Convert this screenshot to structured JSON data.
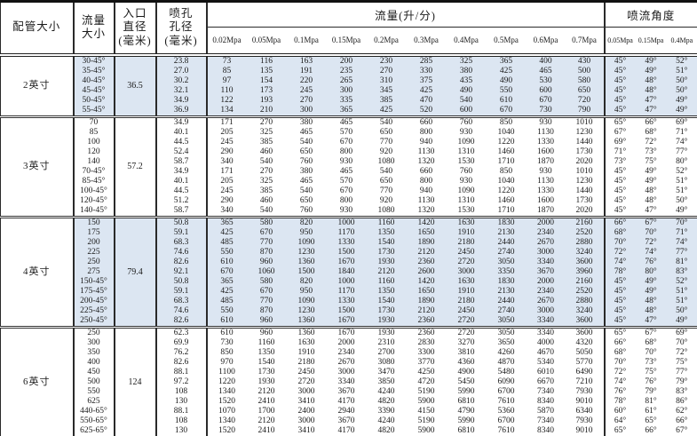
{
  "header": {
    "pipe_size": "配管大小",
    "flow_size": "流量\n大小",
    "inlet_diameter": "入口\n直径\n(毫米)",
    "orifice_diameter": "喷孔\n孔径\n(毫米)",
    "flow_rate_title": "流量(升/分)",
    "spray_angle_title": "喷流角度",
    "flow_pressures": [
      "0.02Mpa",
      "0.05Mpa",
      "0.1Mpa",
      "0.15Mpa",
      "0.2Mpa",
      "0.3Mpa",
      "0.4Mpa",
      "0.5Mpa",
      "0.6Mpa",
      "0.7Mpa"
    ],
    "angle_pressures": [
      "0.05Mpa",
      "0.15Mpa",
      "0.4Mpa"
    ]
  },
  "colors": {
    "shaded_row_bg": "#dce6f2",
    "border": "#2a2a2a"
  },
  "groups": [
    {
      "pipe_size": "2英寸",
      "inlet_diameter": "36.5",
      "shaded": true,
      "rows": [
        {
          "flow_size": "30-45°",
          "orifice": "23.8",
          "flows": [
            73,
            116,
            163,
            200,
            230,
            285,
            325,
            365,
            400,
            430
          ],
          "angles": [
            "45°",
            "49°",
            "52°"
          ]
        },
        {
          "flow_size": "35-45°",
          "orifice": "27.0",
          "flows": [
            85,
            135,
            191,
            235,
            270,
            330,
            380,
            425,
            465,
            500
          ],
          "angles": [
            "45°",
            "49°",
            "51°"
          ]
        },
        {
          "flow_size": "40-45°",
          "orifice": "30.2",
          "flows": [
            97,
            154,
            220,
            265,
            310,
            375,
            435,
            490,
            530,
            580
          ],
          "angles": [
            "45°",
            "48°",
            "50°"
          ]
        },
        {
          "flow_size": "45-45°",
          "orifice": "32.1",
          "flows": [
            110,
            173,
            245,
            300,
            345,
            425,
            490,
            550,
            600,
            650
          ],
          "angles": [
            "45°",
            "48°",
            "50°"
          ]
        },
        {
          "flow_size": "50-45°",
          "orifice": "34.9",
          "flows": [
            122,
            193,
            270,
            335,
            385,
            470,
            540,
            610,
            670,
            720
          ],
          "angles": [
            "45°",
            "47°",
            "49°"
          ]
        },
        {
          "flow_size": "55-45°",
          "orifice": "36.9",
          "flows": [
            134,
            210,
            300,
            365,
            425,
            520,
            600,
            670,
            730,
            790
          ],
          "angles": [
            "45°",
            "47°",
            "49°"
          ]
        }
      ]
    },
    {
      "pipe_size": "3英寸",
      "inlet_diameter": "57.2",
      "shaded": false,
      "rows": [
        {
          "flow_size": "70",
          "orifice": "34.9",
          "flows": [
            171,
            270,
            380,
            465,
            540,
            660,
            760,
            850,
            930,
            1010
          ],
          "angles": [
            "65°",
            "66°",
            "69°"
          ]
        },
        {
          "flow_size": "85",
          "orifice": "40.1",
          "flows": [
            205,
            325,
            465,
            570,
            650,
            800,
            930,
            1040,
            1130,
            1230
          ],
          "angles": [
            "67°",
            "68°",
            "71°"
          ]
        },
        {
          "flow_size": "100",
          "orifice": "44.5",
          "flows": [
            245,
            385,
            540,
            670,
            770,
            940,
            1090,
            1220,
            1330,
            1440
          ],
          "angles": [
            "69°",
            "72°",
            "74°"
          ]
        },
        {
          "flow_size": "120",
          "orifice": "52.4",
          "flows": [
            290,
            460,
            650,
            800,
            920,
            1130,
            1310,
            1460,
            1600,
            1730
          ],
          "angles": [
            "71°",
            "73°",
            "77°"
          ]
        },
        {
          "flow_size": "140",
          "orifice": "58.7",
          "flows": [
            340,
            540,
            760,
            930,
            1080,
            1320,
            1530,
            1710,
            1870,
            2020
          ],
          "angles": [
            "73°",
            "75°",
            "80°"
          ]
        },
        {
          "flow_size": "70-45°",
          "orifice": "34.9",
          "flows": [
            171,
            270,
            380,
            465,
            540,
            660,
            760,
            850,
            930,
            1010
          ],
          "angles": [
            "45°",
            "49°",
            "52°"
          ]
        },
        {
          "flow_size": "85-45°",
          "orifice": "40.1",
          "flows": [
            205,
            325,
            465,
            570,
            650,
            800,
            930,
            1040,
            1130,
            1230
          ],
          "angles": [
            "45°",
            "49°",
            "51°"
          ]
        },
        {
          "flow_size": "100-45°",
          "orifice": "44.5",
          "flows": [
            245,
            385,
            540,
            670,
            770,
            940,
            1090,
            1220,
            1330,
            1440
          ],
          "angles": [
            "45°",
            "48°",
            "51°"
          ]
        },
        {
          "flow_size": "120-45°",
          "orifice": "51.2",
          "flows": [
            290,
            460,
            650,
            800,
            920,
            1130,
            1310,
            1460,
            1600,
            1730
          ],
          "angles": [
            "45°",
            "48°",
            "50°"
          ]
        },
        {
          "flow_size": "140-45°",
          "orifice": "58.7",
          "flows": [
            340,
            540,
            760,
            930,
            1080,
            1320,
            1530,
            1710,
            1870,
            2020
          ],
          "angles": [
            "45°",
            "47°",
            "49°"
          ]
        }
      ]
    },
    {
      "pipe_size": "4英寸",
      "inlet_diameter": "79.4",
      "shaded": true,
      "rows": [
        {
          "flow_size": "150",
          "orifice": "50.8",
          "flows": [
            365,
            580,
            820,
            1000,
            1160,
            1420,
            1630,
            1830,
            2000,
            2160
          ],
          "angles": [
            "66°",
            "67°",
            "70°"
          ]
        },
        {
          "flow_size": "175",
          "orifice": "59.1",
          "flows": [
            425,
            670,
            950,
            1170,
            1350,
            1650,
            1910,
            2130,
            2340,
            2520
          ],
          "angles": [
            "68°",
            "70°",
            "71°"
          ]
        },
        {
          "flow_size": "200",
          "orifice": "68.3",
          "flows": [
            485,
            770,
            1090,
            1330,
            1540,
            1890,
            2180,
            2440,
            2670,
            2880
          ],
          "angles": [
            "70°",
            "72°",
            "74°"
          ]
        },
        {
          "flow_size": "225",
          "orifice": "74.6",
          "flows": [
            550,
            870,
            1230,
            1500,
            1730,
            2120,
            2450,
            2740,
            3000,
            3240
          ],
          "angles": [
            "72°",
            "74°",
            "77°"
          ]
        },
        {
          "flow_size": "250",
          "orifice": "82.6",
          "flows": [
            610,
            960,
            1360,
            1670,
            1930,
            2360,
            2720,
            3050,
            3340,
            3600
          ],
          "angles": [
            "74°",
            "76°",
            "81°"
          ]
        },
        {
          "flow_size": "275",
          "orifice": "92.1",
          "flows": [
            670,
            1060,
            1500,
            1840,
            2120,
            2600,
            3000,
            3350,
            3670,
            3960
          ],
          "angles": [
            "78°",
            "80°",
            "83°"
          ]
        },
        {
          "flow_size": "150-45°",
          "orifice": "50.8",
          "flows": [
            365,
            580,
            820,
            1000,
            1160,
            1420,
            1630,
            1830,
            2000,
            2160
          ],
          "angles": [
            "45°",
            "49°",
            "52°"
          ]
        },
        {
          "flow_size": "175-45°",
          "orifice": "59.1",
          "flows": [
            425,
            670,
            950,
            1170,
            1350,
            1650,
            1910,
            2130,
            2340,
            2520
          ],
          "angles": [
            "45°",
            "49°",
            "51°"
          ]
        },
        {
          "flow_size": "200-45°",
          "orifice": "68.3",
          "flows": [
            485,
            770,
            1090,
            1330,
            1540,
            1890,
            2180,
            2440,
            2670,
            2880
          ],
          "angles": [
            "45°",
            "48°",
            "51°"
          ]
        },
        {
          "flow_size": "225-45°",
          "orifice": "74.6",
          "flows": [
            550,
            870,
            1230,
            1500,
            1730,
            2120,
            2450,
            2740,
            3000,
            3240
          ],
          "angles": [
            "45°",
            "48°",
            "50°"
          ]
        },
        {
          "flow_size": "250-45°",
          "orifice": "82.6",
          "flows": [
            610,
            960,
            1360,
            1670,
            1930,
            2360,
            2720,
            3050,
            3340,
            3600
          ],
          "angles": [
            "45°",
            "47°",
            "49°"
          ]
        }
      ]
    },
    {
      "pipe_size": "6英寸",
      "inlet_diameter": "124",
      "shaded": false,
      "rows": [
        {
          "flow_size": "250",
          "orifice": "62.3",
          "flows": [
            610,
            960,
            1360,
            1670,
            1930,
            2360,
            2720,
            3050,
            3340,
            3600
          ],
          "angles": [
            "65°",
            "67°",
            "69°"
          ]
        },
        {
          "flow_size": "300",
          "orifice": "69.9",
          "flows": [
            730,
            1160,
            1630,
            2000,
            2310,
            2830,
            3270,
            3650,
            4000,
            4320
          ],
          "angles": [
            "66°",
            "68°",
            "70°"
          ]
        },
        {
          "flow_size": "350",
          "orifice": "76.2",
          "flows": [
            850,
            1350,
            1910,
            2340,
            2700,
            3300,
            3810,
            4260,
            4670,
            5050
          ],
          "angles": [
            "68°",
            "70°",
            "72°"
          ]
        },
        {
          "flow_size": "400",
          "orifice": "82.6",
          "flows": [
            970,
            1540,
            2180,
            2670,
            3080,
            3770,
            4360,
            4870,
            5340,
            5770
          ],
          "angles": [
            "70°",
            "73°",
            "75°"
          ]
        },
        {
          "flow_size": "450",
          "orifice": "88.1",
          "flows": [
            1100,
            1730,
            2450,
            3000,
            3470,
            4250,
            4900,
            5480,
            6010,
            6490
          ],
          "angles": [
            "72°",
            "75°",
            "77°"
          ]
        },
        {
          "flow_size": "500",
          "orifice": "97.2",
          "flows": [
            1220,
            1930,
            2720,
            3340,
            3850,
            4720,
            5450,
            6090,
            6670,
            7210
          ],
          "angles": [
            "74°",
            "76°",
            "79°"
          ]
        },
        {
          "flow_size": "550",
          "orifice": "108",
          "flows": [
            1340,
            2120,
            3000,
            3670,
            4240,
            5190,
            5990,
            6700,
            7340,
            7930
          ],
          "angles": [
            "76°",
            "79°",
            "83°"
          ]
        },
        {
          "flow_size": "625",
          "orifice": "130",
          "flows": [
            1520,
            2410,
            3410,
            4170,
            4820,
            5900,
            6810,
            7610,
            8340,
            9010
          ],
          "angles": [
            "78°",
            "81°",
            "86°"
          ]
        },
        {
          "flow_size": "440-65°",
          "orifice": "88.1",
          "flows": [
            1070,
            1700,
            2400,
            2940,
            3390,
            4150,
            4790,
            5360,
            5870,
            6340
          ],
          "angles": [
            "60°",
            "61°",
            "62°"
          ]
        },
        {
          "flow_size": "550-65°",
          "orifice": "108",
          "flows": [
            1340,
            2120,
            3000,
            3670,
            4240,
            5190,
            5990,
            6700,
            7340,
            7930
          ],
          "angles": [
            "64°",
            "65°",
            "66°"
          ]
        },
        {
          "flow_size": "625-65°",
          "orifice": "130",
          "flows": [
            1520,
            2410,
            3410,
            4170,
            4820,
            5900,
            6810,
            7610,
            8340,
            9010
          ],
          "angles": [
            "65°",
            "66°",
            "67°"
          ]
        }
      ]
    }
  ]
}
